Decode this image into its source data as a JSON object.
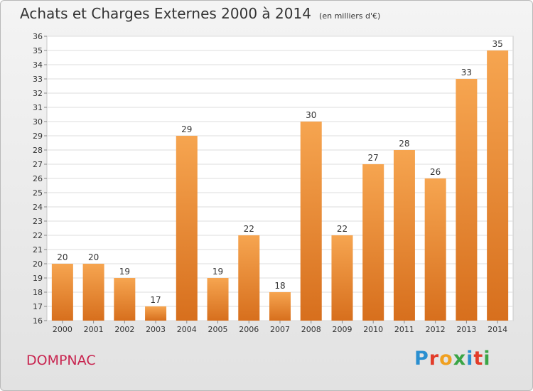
{
  "title": "Achats et Charges Externes 2000 à 2014",
  "subtitle": "(en milliers d'€)",
  "place": "DOMPNAC",
  "logo_text": "Proxiti",
  "colors": {
    "bar_top": "#f6a550",
    "bar_bottom": "#d76f1d",
    "place": "#c8244f",
    "grid": "#dcdcdc"
  },
  "chart_data": {
    "type": "bar",
    "title": "Achats et Charges Externes 2000 à 2014",
    "subtitle": "(en milliers d'€)",
    "categories": [
      "2000",
      "2001",
      "2002",
      "2003",
      "2004",
      "2005",
      "2006",
      "2007",
      "2008",
      "2009",
      "2010",
      "2011",
      "2012",
      "2013",
      "2014"
    ],
    "values": [
      20,
      20,
      19,
      17,
      29,
      19,
      22,
      18,
      30,
      22,
      27,
      28,
      26,
      33,
      35
    ],
    "ylim": [
      16,
      36
    ],
    "yticks": [
      16,
      17,
      18,
      19,
      20,
      21,
      22,
      23,
      24,
      25,
      26,
      27,
      28,
      29,
      30,
      31,
      32,
      33,
      34,
      35,
      36
    ],
    "grid": true,
    "data_labels": true
  }
}
